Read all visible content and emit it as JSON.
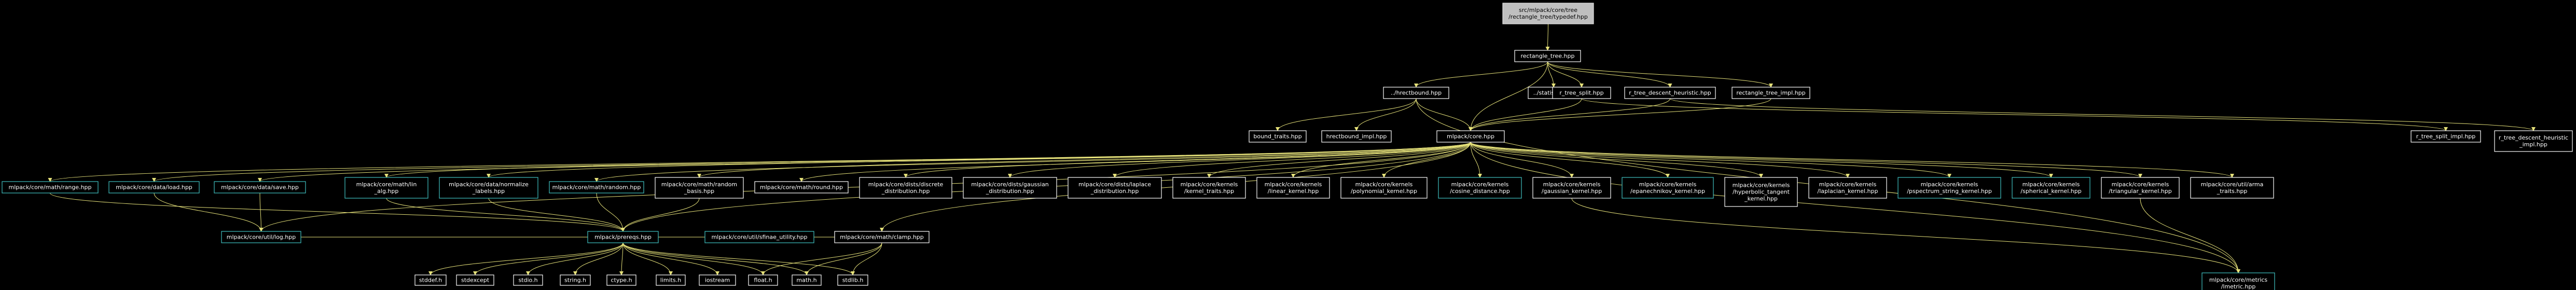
{
  "graph": {
    "nodes": [
      {
        "id": "root",
        "lines": [
          "src/mlpack/core/tree",
          "/rectangle_tree/typedef.hpp"
        ],
        "style": "root"
      },
      {
        "id": "rtree",
        "lines": [
          "rectangle_tree.hpp"
        ],
        "style": "white"
      },
      {
        "id": "hrect",
        "lines": [
          "../hrectbound.hpp"
        ],
        "style": "white"
      },
      {
        "id": "statistic",
        "lines": [
          "../statistic.hpp"
        ],
        "style": "white"
      },
      {
        "id": "rtsplit",
        "lines": [
          "r_tree_split.hpp"
        ],
        "style": "white"
      },
      {
        "id": "rtdesc",
        "lines": [
          "r_tree_descent_heuristic.hpp"
        ],
        "style": "white"
      },
      {
        "id": "rtimpl",
        "lines": [
          "rectangle_tree_impl.hpp"
        ],
        "style": "white"
      },
      {
        "id": "btraits",
        "lines": [
          "bound_traits.hpp"
        ],
        "style": "white"
      },
      {
        "id": "hrectimpl",
        "lines": [
          "hrectbound_impl.hpp"
        ],
        "style": "white"
      },
      {
        "id": "core",
        "lines": [
          "mlpack/core.hpp"
        ],
        "style": "white"
      },
      {
        "id": "rtsplitimpl",
        "lines": [
          "r_tree_split_impl.hpp"
        ],
        "style": "white"
      },
      {
        "id": "rtdescimpl",
        "lines": [
          "r_tree_descent_heuristic",
          "_impl.hpp"
        ],
        "style": "white"
      },
      {
        "id": "range",
        "lines": [
          "mlpack/core/math/range.hpp"
        ],
        "style": "cyan"
      },
      {
        "id": "load",
        "lines": [
          "mlpack/core/data/load.hpp"
        ],
        "style": "cyan"
      },
      {
        "id": "save",
        "lines": [
          "mlpack/core/data/save.hpp"
        ],
        "style": "cyan"
      },
      {
        "id": "lcg",
        "lines": [
          "mlpack/core/math/lin",
          "_alg.hpp"
        ],
        "style": "cyan"
      },
      {
        "id": "nlabels",
        "lines": [
          "mlpack/core/data/normalize",
          "_labels.hpp"
        ],
        "style": "cyan"
      },
      {
        "id": "random",
        "lines": [
          "mlpack/core/math/random.hpp"
        ],
        "style": "cyan"
      },
      {
        "id": "rbasis",
        "lines": [
          "mlpack/core/math/random",
          "_basis.hpp"
        ],
        "style": "white"
      },
      {
        "id": "round",
        "lines": [
          "mlpack/core/math/round.hpp"
        ],
        "style": "white"
      },
      {
        "id": "ddist",
        "lines": [
          "mlpack/core/dists/discrete",
          "_distribution.hpp"
        ],
        "style": "white"
      },
      {
        "id": "gdist",
        "lines": [
          "mlpack/core/dists/gaussian",
          "_distribution.hpp"
        ],
        "style": "white"
      },
      {
        "id": "ldist",
        "lines": [
          "mlpack/core/dists/laplace",
          "_distribution.hpp"
        ],
        "style": "white"
      },
      {
        "id": "ktraits",
        "lines": [
          "mlpack/core/kernels",
          "/kernel_traits.hpp"
        ],
        "style": "white"
      },
      {
        "id": "linear",
        "lines": [
          "mlpack/core/kernels",
          "/linear_kernel.hpp"
        ],
        "style": "white"
      },
      {
        "id": "poly",
        "lines": [
          "mlpack/core/kernels",
          "/polynomial_kernel.hpp"
        ],
        "style": "white"
      },
      {
        "id": "cosine",
        "lines": [
          "mlpack/core/kernels",
          "/cosine_distance.hpp"
        ],
        "style": "cyan"
      },
      {
        "id": "gauss",
        "lines": [
          "mlpack/core/kernels",
          "/gaussian_kernel.hpp"
        ],
        "style": "white"
      },
      {
        "id": "epan",
        "lines": [
          "mlpack/core/kernels",
          "/epanechnikov_kernel.hpp"
        ],
        "style": "cyan"
      },
      {
        "id": "htan",
        "lines": [
          "mlpack/core/kernels",
          "/hyperbolic_tangent",
          "_kernel.hpp"
        ],
        "style": "white"
      },
      {
        "id": "lapk",
        "lines": [
          "mlpack/core/kernels",
          "/laplacian_kernel.hpp"
        ],
        "style": "white"
      },
      {
        "id": "pspec",
        "lines": [
          "mlpack/core/kernels",
          "/pspectrum_string_kernel.hpp"
        ],
        "style": "cyan"
      },
      {
        "id": "spher",
        "lines": [
          "mlpack/core/kernels",
          "/spherical_kernel.hpp"
        ],
        "style": "cyan"
      },
      {
        "id": "tri",
        "lines": [
          "mlpack/core/kernels",
          "/triangular_kernel.hpp"
        ],
        "style": "white"
      },
      {
        "id": "ctraits",
        "lines": [
          "mlpack/core/util/arma",
          "_traits.hpp"
        ],
        "style": "white"
      },
      {
        "id": "log",
        "lines": [
          "mlpack/core/util/log.hpp"
        ],
        "style": "cyan"
      },
      {
        "id": "prereqs",
        "lines": [
          "mlpack/prereqs.hpp"
        ],
        "style": "cyan"
      },
      {
        "id": "clamp",
        "lines": [
          "mlpack/core/math/clamp.hpp"
        ],
        "style": "white"
      },
      {
        "id": "sfinae",
        "lines": [
          "mlpack/core/util/sfinae_utility.hpp"
        ],
        "style": "cyan"
      },
      {
        "id": "lmetric",
        "lines": [
          "mlpack/core/metrics",
          "/lmetric.hpp"
        ],
        "style": "cyan"
      },
      {
        "id": "stddef",
        "lines": [
          "stddef.h"
        ],
        "style": "white"
      },
      {
        "id": "stdexcept",
        "lines": [
          "stdexcept"
        ],
        "style": "white"
      },
      {
        "id": "stdio",
        "lines": [
          "stdio.h"
        ],
        "style": "white"
      },
      {
        "id": "string",
        "lines": [
          "string.h"
        ],
        "style": "white"
      },
      {
        "id": "ctype",
        "lines": [
          "ctype.h"
        ],
        "style": "white"
      },
      {
        "id": "limits",
        "lines": [
          "limits.h"
        ],
        "style": "white"
      },
      {
        "id": "iostream",
        "lines": [
          "iostream"
        ],
        "style": "white"
      },
      {
        "id": "float",
        "lines": [
          "float.h"
        ],
        "style": "white"
      },
      {
        "id": "math",
        "lines": [
          "math.h"
        ],
        "style": "white"
      },
      {
        "id": "stdlib",
        "lines": [
          "stdlib.h"
        ],
        "style": "white"
      }
    ],
    "edges": [
      [
        "root",
        "rtree"
      ],
      [
        "rtree",
        "hrect"
      ],
      [
        "rtree",
        "statistic"
      ],
      [
        "rtree",
        "rtsplit"
      ],
      [
        "rtree",
        "rtdesc"
      ],
      [
        "rtree",
        "rtimpl"
      ],
      [
        "rtree",
        "core"
      ],
      [
        "hrect",
        "btraits"
      ],
      [
        "hrect",
        "hrectimpl"
      ],
      [
        "hrect",
        "core"
      ],
      [
        "hrect",
        "lmetric"
      ],
      [
        "rtsplit",
        "core"
      ],
      [
        "rtsplit",
        "rtsplitimpl"
      ],
      [
        "rtdesc",
        "core"
      ],
      [
        "rtdesc",
        "rtdescimpl"
      ],
      [
        "rtimpl",
        "core"
      ],
      [
        "core",
        "range"
      ],
      [
        "core",
        "load"
      ],
      [
        "core",
        "save"
      ],
      [
        "core",
        "lcg"
      ],
      [
        "core",
        "nlabels"
      ],
      [
        "core",
        "random"
      ],
      [
        "core",
        "rbasis"
      ],
      [
        "core",
        "round"
      ],
      [
        "core",
        "ddist"
      ],
      [
        "core",
        "gdist"
      ],
      [
        "core",
        "ldist"
      ],
      [
        "core",
        "ktraits"
      ],
      [
        "core",
        "linear"
      ],
      [
        "core",
        "poly"
      ],
      [
        "core",
        "cosine"
      ],
      [
        "core",
        "gauss"
      ],
      [
        "core",
        "epan"
      ],
      [
        "core",
        "htan"
      ],
      [
        "core",
        "lapk"
      ],
      [
        "core",
        "pspec"
      ],
      [
        "core",
        "spher"
      ],
      [
        "core",
        "tri"
      ],
      [
        "core",
        "ctraits"
      ],
      [
        "core",
        "lmetric"
      ],
      [
        "core",
        "prereqs"
      ],
      [
        "core",
        "log"
      ],
      [
        "core",
        "clamp"
      ],
      [
        "range",
        "prereqs"
      ],
      [
        "load",
        "log"
      ],
      [
        "save",
        "log"
      ],
      [
        "lcg",
        "prereqs"
      ],
      [
        "nlabels",
        "prereqs"
      ],
      [
        "random",
        "prereqs"
      ],
      [
        "rbasis",
        "prereqs"
      ],
      [
        "log",
        "prereqs"
      ],
      [
        "clamp",
        "prereqs"
      ],
      [
        "tri",
        "lmetric"
      ],
      [
        "gauss",
        "lmetric"
      ],
      [
        "prereqs",
        "stddef"
      ],
      [
        "prereqs",
        "stdexcept"
      ],
      [
        "prereqs",
        "stdio"
      ],
      [
        "prereqs",
        "string"
      ],
      [
        "prereqs",
        "ctype"
      ],
      [
        "prereqs",
        "limits"
      ],
      [
        "prereqs",
        "iostream"
      ],
      [
        "prereqs",
        "float"
      ],
      [
        "prereqs",
        "math"
      ],
      [
        "prereqs",
        "stdlib"
      ],
      [
        "prereqs",
        "sfinae"
      ],
      [
        "clamp",
        "float"
      ],
      [
        "clamp",
        "math"
      ],
      [
        "clamp",
        "stdlib"
      ]
    ]
  }
}
